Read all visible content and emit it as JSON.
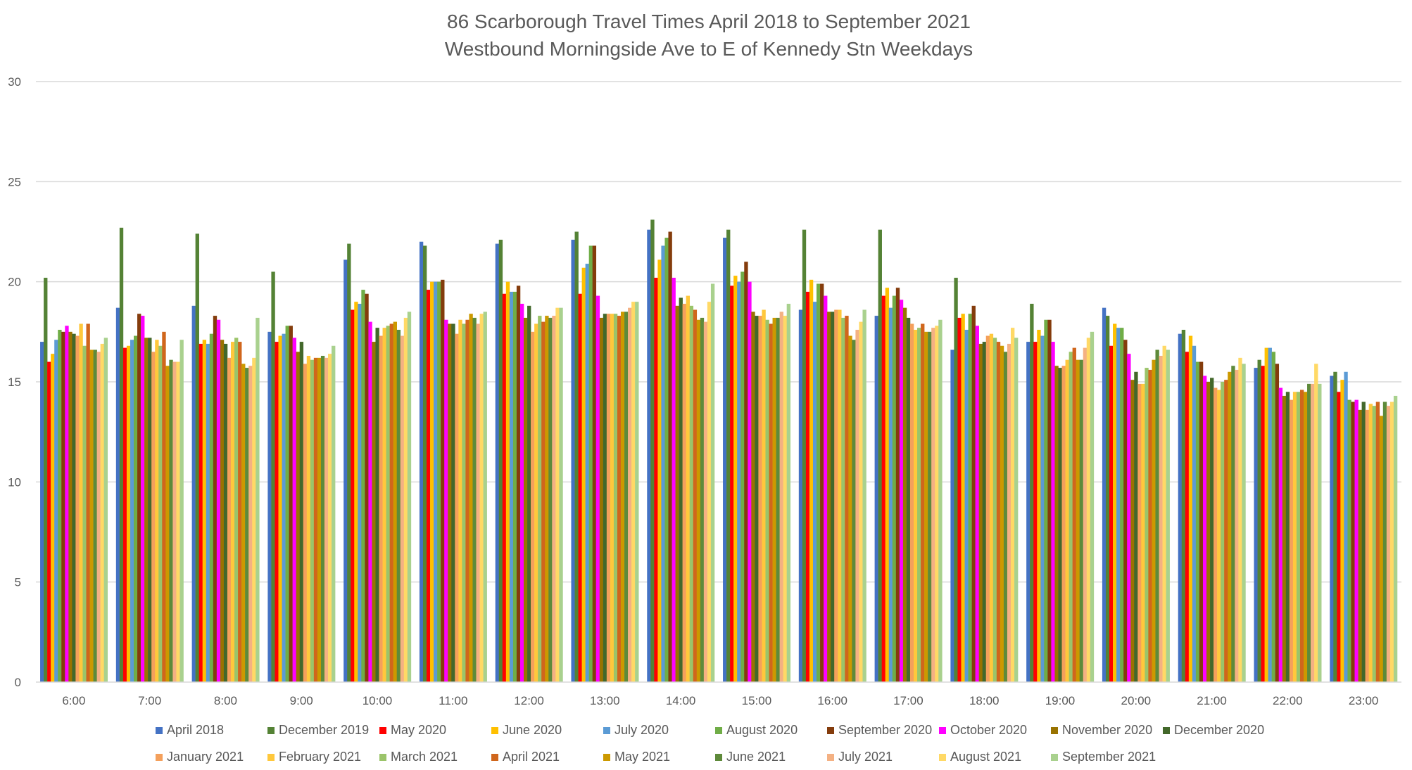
{
  "chart_data": {
    "type": "bar",
    "title": "86 Scarborough Travel Times April 2018 to September 2021",
    "subtitle": "Westbound Morningside Ave to E of Kennedy Stn Weekdays",
    "xlabel": "",
    "ylabel": "",
    "ylim": [
      0,
      30
    ],
    "yticks": [
      "0",
      "5",
      "10",
      "15",
      "20",
      "25",
      "30"
    ],
    "grid": true,
    "legend_placement": "bottom",
    "categories": [
      "6:00",
      "7:00",
      "8:00",
      "9:00",
      "10:00",
      "11:00",
      "12:00",
      "13:00",
      "14:00",
      "15:00",
      "16:00",
      "17:00",
      "18:00",
      "19:00",
      "20:00",
      "21:00",
      "22:00",
      "23:00"
    ],
    "series": [
      {
        "name": "April 2018",
        "color": "#4472C4",
        "values": [
          17.0,
          18.7,
          18.8,
          17.5,
          21.1,
          22.0,
          21.9,
          22.1,
          22.6,
          22.2,
          18.6,
          18.3,
          16.6,
          17.0,
          18.7,
          17.4,
          15.7,
          15.3
        ]
      },
      {
        "name": "December 2019",
        "color": "#548235",
        "values": [
          20.2,
          22.7,
          22.4,
          20.5,
          21.9,
          21.8,
          22.1,
          22.5,
          23.1,
          22.6,
          22.6,
          22.6,
          20.2,
          18.9,
          18.3,
          17.6,
          16.1,
          15.5
        ]
      },
      {
        "name": "May 2020",
        "color": "#FF0000",
        "values": [
          16.0,
          16.7,
          16.9,
          17.0,
          18.6,
          19.6,
          19.4,
          19.4,
          20.2,
          19.8,
          19.5,
          19.3,
          18.2,
          17.0,
          16.8,
          16.5,
          15.8,
          14.5
        ]
      },
      {
        "name": "June 2020",
        "color": "#FFC000",
        "values": [
          16.4,
          16.8,
          17.1,
          17.3,
          19.0,
          20.0,
          20.0,
          20.7,
          21.1,
          20.3,
          20.1,
          19.7,
          18.4,
          17.6,
          17.9,
          17.3,
          16.7,
          15.1
        ]
      },
      {
        "name": "July 2020",
        "color": "#5B9BD5",
        "values": [
          17.1,
          17.1,
          16.9,
          17.4,
          18.9,
          20.0,
          19.5,
          20.9,
          21.8,
          20.0,
          19.0,
          18.7,
          17.6,
          17.3,
          17.7,
          16.8,
          16.7,
          15.5
        ]
      },
      {
        "name": "August 2020",
        "color": "#70AD47",
        "values": [
          17.6,
          17.3,
          17.4,
          17.8,
          19.6,
          20.0,
          19.5,
          21.8,
          22.2,
          20.5,
          19.9,
          19.3,
          18.4,
          18.1,
          17.7,
          16.0,
          16.5,
          14.1
        ]
      },
      {
        "name": "September 2020",
        "color": "#843C0C",
        "values": [
          17.5,
          18.4,
          18.3,
          17.8,
          19.4,
          20.1,
          19.8,
          21.8,
          22.5,
          21.0,
          19.9,
          19.7,
          18.8,
          18.1,
          17.1,
          16.0,
          15.9,
          14.0
        ]
      },
      {
        "name": "October 2020",
        "color": "#FF00FF",
        "values": [
          17.8,
          18.3,
          18.1,
          17.2,
          18.0,
          18.1,
          18.9,
          19.3,
          20.2,
          20.0,
          19.3,
          19.1,
          17.8,
          17.0,
          16.4,
          15.3,
          14.7,
          14.1
        ]
      },
      {
        "name": "November 2020",
        "color": "#997300",
        "values": [
          17.5,
          17.2,
          17.1,
          16.5,
          17.0,
          17.9,
          18.2,
          18.2,
          18.8,
          18.5,
          18.5,
          18.7,
          16.9,
          15.8,
          15.1,
          15.0,
          14.3,
          13.6
        ]
      },
      {
        "name": "December 2020",
        "color": "#43682B",
        "values": [
          17.4,
          17.2,
          16.9,
          17.0,
          17.7,
          17.9,
          18.8,
          18.4,
          19.2,
          18.3,
          18.5,
          18.2,
          17.0,
          15.7,
          15.5,
          15.2,
          14.5,
          14.0
        ]
      },
      {
        "name": "January 2021",
        "color": "#F4A05C",
        "values": [
          17.3,
          16.5,
          16.2,
          15.9,
          17.3,
          17.4,
          17.5,
          18.4,
          18.9,
          18.3,
          18.6,
          17.9,
          17.3,
          15.8,
          14.9,
          14.7,
          14.1,
          13.6
        ]
      },
      {
        "name": "February 2021",
        "color": "#FFC83C",
        "values": [
          17.9,
          17.1,
          17.0,
          16.3,
          17.7,
          18.1,
          17.9,
          18.4,
          19.3,
          18.6,
          18.6,
          17.6,
          17.4,
          16.1,
          14.9,
          14.6,
          14.5,
          13.9
        ]
      },
      {
        "name": "March 2021",
        "color": "#9BC46A",
        "values": [
          16.8,
          16.8,
          17.2,
          16.1,
          17.8,
          17.9,
          18.3,
          18.4,
          18.8,
          18.1,
          18.2,
          17.7,
          17.2,
          16.5,
          15.7,
          15.0,
          14.5,
          13.8
        ]
      },
      {
        "name": "April 2021",
        "color": "#D0661C",
        "values": [
          17.9,
          17.5,
          17.0,
          16.2,
          17.9,
          18.1,
          18.0,
          18.3,
          18.6,
          17.9,
          18.3,
          17.9,
          17.0,
          16.7,
          15.6,
          15.1,
          14.6,
          14.0
        ]
      },
      {
        "name": "May 2021",
        "color": "#CC9900",
        "values": [
          16.6,
          15.8,
          15.9,
          16.2,
          18.0,
          18.4,
          18.3,
          18.5,
          18.1,
          18.2,
          17.3,
          17.5,
          16.8,
          16.1,
          16.1,
          15.5,
          14.5,
          13.3
        ]
      },
      {
        "name": "June 2021",
        "color": "#5E8A3A",
        "values": [
          16.6,
          16.1,
          15.7,
          16.3,
          17.6,
          18.2,
          18.2,
          18.5,
          18.2,
          18.2,
          17.1,
          17.5,
          16.5,
          16.1,
          16.6,
          15.8,
          14.9,
          14.0
        ]
      },
      {
        "name": "July 2021",
        "color": "#F4B183",
        "values": [
          16.5,
          16.0,
          15.8,
          16.2,
          17.3,
          17.9,
          18.3,
          18.7,
          18.0,
          18.5,
          17.6,
          17.7,
          16.9,
          16.7,
          16.3,
          15.6,
          14.9,
          13.8
        ]
      },
      {
        "name": "August 2021",
        "color": "#FFD966",
        "values": [
          16.9,
          16.0,
          16.2,
          16.4,
          18.2,
          18.4,
          18.7,
          19.0,
          19.0,
          18.3,
          18.0,
          17.8,
          17.7,
          17.2,
          16.8,
          16.2,
          15.9,
          14.0
        ]
      },
      {
        "name": "September 2021",
        "color": "#A9D18E",
        "values": [
          17.2,
          17.1,
          18.2,
          16.8,
          18.5,
          18.5,
          18.7,
          19.0,
          19.9,
          18.9,
          18.6,
          18.1,
          17.2,
          17.5,
          16.6,
          15.9,
          14.9,
          14.3
        ]
      }
    ]
  }
}
